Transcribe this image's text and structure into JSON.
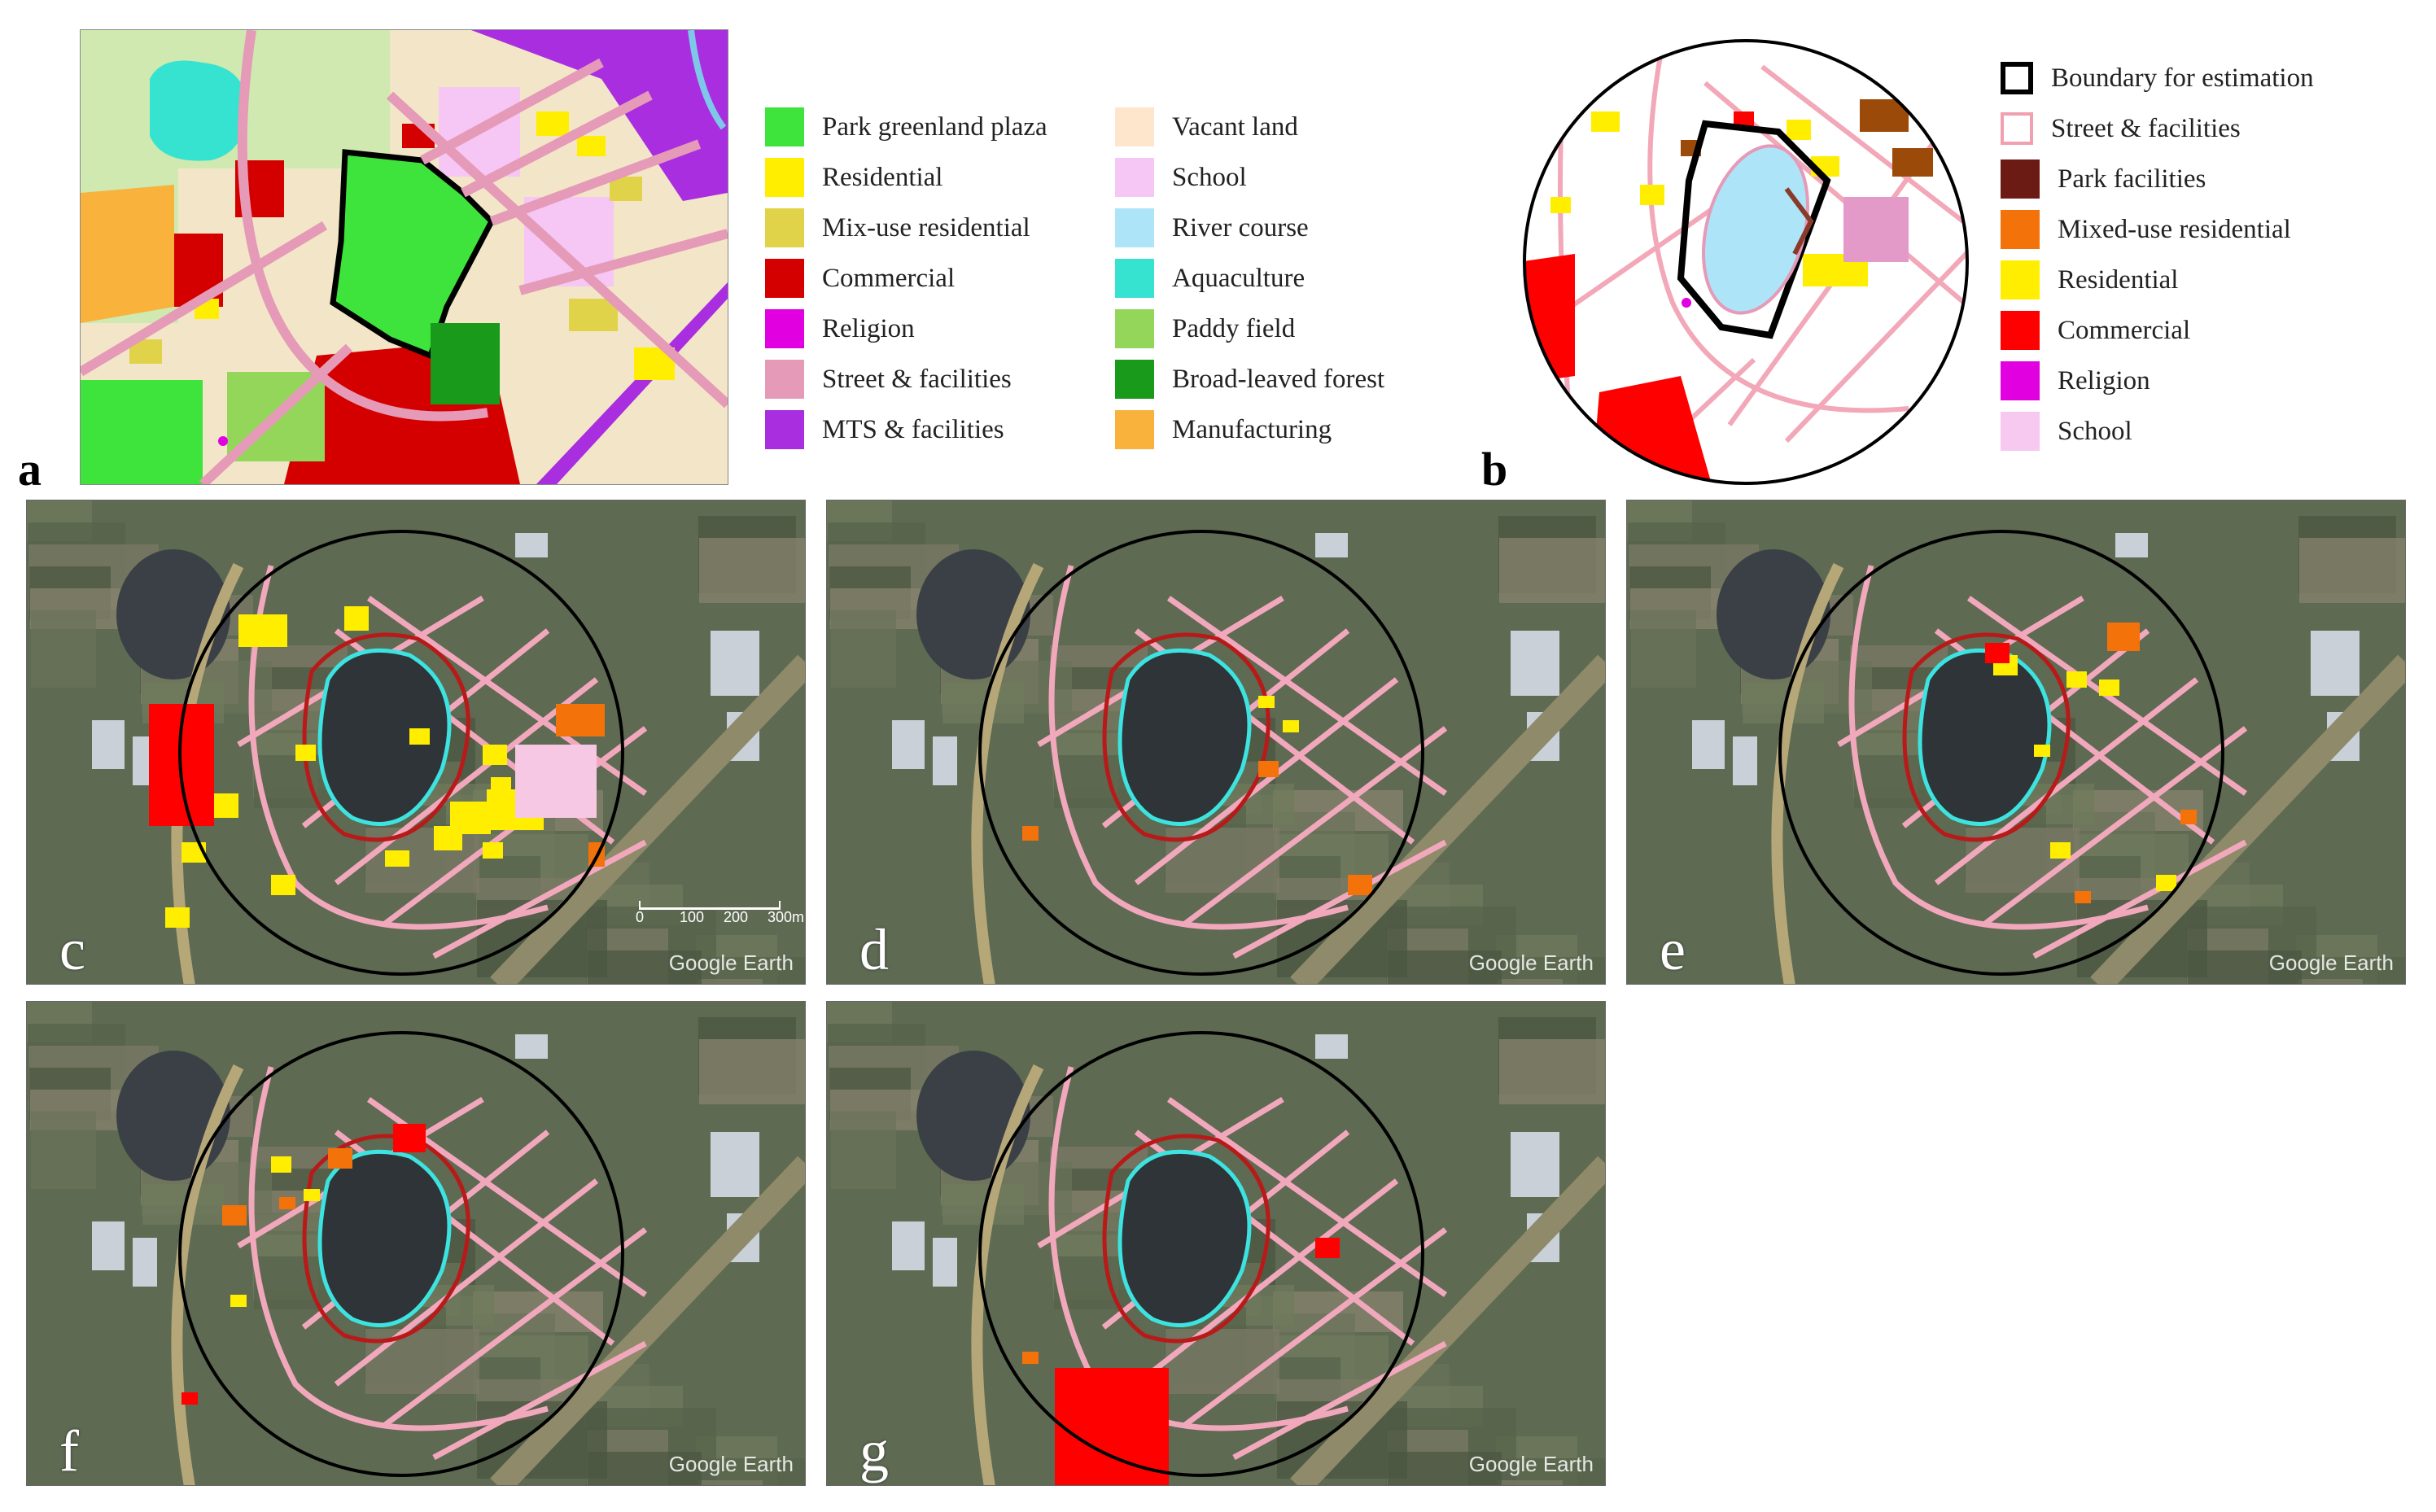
{
  "colors": {
    "park_greenland_plaza": "#3ee33b",
    "residential": "#ffee00",
    "mix_use_residential": "#e0d34a",
    "commercial": "#d40000",
    "religion": "#e000e0",
    "street_facilities": "#e59ab8",
    "mts_facilities": "#a82ee0",
    "vacant_land": "#fde6cc",
    "school": "#f6c6f4",
    "river_course": "#aee4f7",
    "aquaculture": "#35e3d0",
    "paddy_field": "#93d65a",
    "broad_leaved_forest": "#1a9a1a",
    "manufacturing": "#f9b23c",
    "park_facilities": "#6b1a14",
    "mixed_use_residential_b": "#f4720a",
    "commercial_b": "#ff0000",
    "school_b": "#f7c8f0"
  },
  "panel_a": {
    "letter": "a",
    "legend_col1": [
      {
        "label": "Park greenland plaza",
        "color": "#3ee33b"
      },
      {
        "label": "Residential",
        "color": "#ffee00"
      },
      {
        "label": "Mix-use residential",
        "color": "#e0d34a"
      },
      {
        "label": "Commercial",
        "color": "#d40000"
      },
      {
        "label": "Religion",
        "color": "#e000e0"
      },
      {
        "label": "Street & facilities",
        "color": "#e59ab8"
      },
      {
        "label": "MTS & facilities",
        "color": "#a82ee0"
      }
    ],
    "legend_col2": [
      {
        "label": "Vacant land",
        "color": "#fde6cc"
      },
      {
        "label": "School",
        "color": "#f6c6f4"
      },
      {
        "label": "River course",
        "color": "#aee4f7"
      },
      {
        "label": "Aquaculture",
        "color": "#35e3d0"
      },
      {
        "label": "Paddy field",
        "color": "#93d65a"
      },
      {
        "label": "Broad-leaved forest",
        "color": "#1a9a1a"
      },
      {
        "label": "Manufacturing",
        "color": "#f9b23c"
      }
    ]
  },
  "panel_b": {
    "letter": "b",
    "legend": [
      {
        "label": "Boundary for estimation",
        "kind": "outline-black"
      },
      {
        "label": "Street & facilities",
        "kind": "outline-pink"
      },
      {
        "label": "Park facilities",
        "color": "#6b1a14"
      },
      {
        "label": "Mixed-use residential",
        "color": "#f4720a"
      },
      {
        "label": "Residential",
        "color": "#ffee00"
      },
      {
        "label": "Commercial",
        "color": "#ff0000"
      },
      {
        "label": "Religion",
        "color": "#e000e0"
      },
      {
        "label": "School",
        "color": "#f7c8f0"
      }
    ]
  },
  "photos": {
    "c": {
      "letter": "c",
      "watermark": "Google Earth",
      "scale_labels": [
        "0",
        "100",
        "200",
        "300m"
      ]
    },
    "d": {
      "letter": "d",
      "watermark": "Google Earth"
    },
    "e": {
      "letter": "e",
      "watermark": "Google Earth"
    },
    "f": {
      "letter": "f",
      "watermark": "Google Earth"
    },
    "g": {
      "letter": "g",
      "watermark": "Google Earth"
    }
  }
}
